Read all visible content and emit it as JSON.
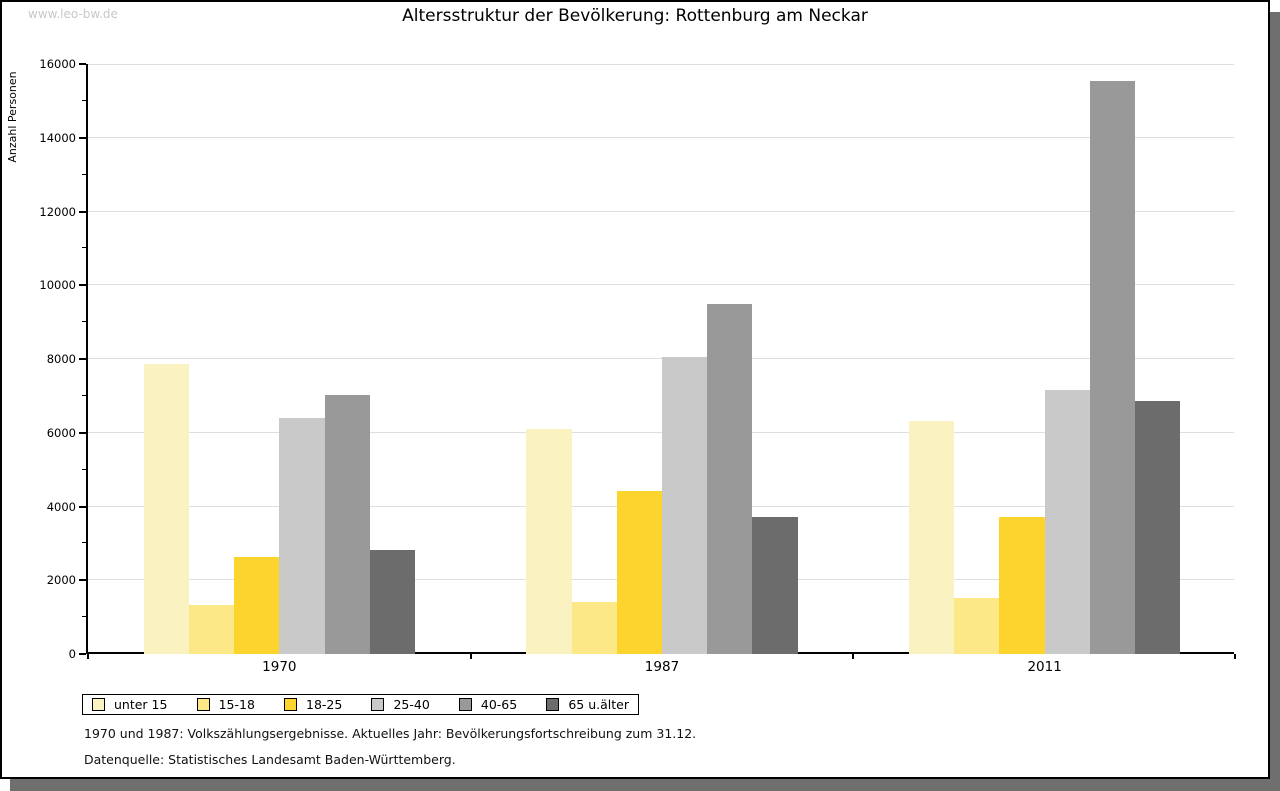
{
  "watermark": "www.leo-bw.de",
  "title": "Altersstruktur der Bevölkerung: Rottenburg am Neckar",
  "chart_data": {
    "type": "bar",
    "title": "Altersstruktur der Bevölkerung: Rottenburg am Neckar",
    "xlabel": "",
    "ylabel": "Anzahl Personen",
    "ylim": [
      0,
      16000
    ],
    "ytick_step": 2000,
    "yminor_step": 1000,
    "grid": true,
    "legend_position": "bottom-left",
    "categories": [
      "1970",
      "1987",
      "2011"
    ],
    "series": [
      {
        "name": "unter 15",
        "color": "#FBF2C1",
        "values": [
          7860,
          6110,
          6310
        ]
      },
      {
        "name": "15-18",
        "color": "#FCE886",
        "values": [
          1330,
          1410,
          1520
        ]
      },
      {
        "name": "18-25",
        "color": "#FCD42D",
        "values": [
          2620,
          4410,
          3720
        ]
      },
      {
        "name": "25-40",
        "color": "#C9C9C9",
        "values": [
          6400,
          8060,
          7160
        ]
      },
      {
        "name": "40-65",
        "color": "#999999",
        "values": [
          7030,
          9490,
          15550
        ]
      },
      {
        "name": "65 u.älter",
        "color": "#6C6C6C",
        "values": [
          2810,
          3710,
          6870
        ]
      }
    ]
  },
  "footnotes": {
    "line1": "1970 und 1987: Volkszählungsergebnisse. Aktuelles Jahr: Bevölkerungsfortschreibung zum 31.12.",
    "line2": "Datenquelle: Statistisches Landesamt Baden-Württemberg."
  }
}
